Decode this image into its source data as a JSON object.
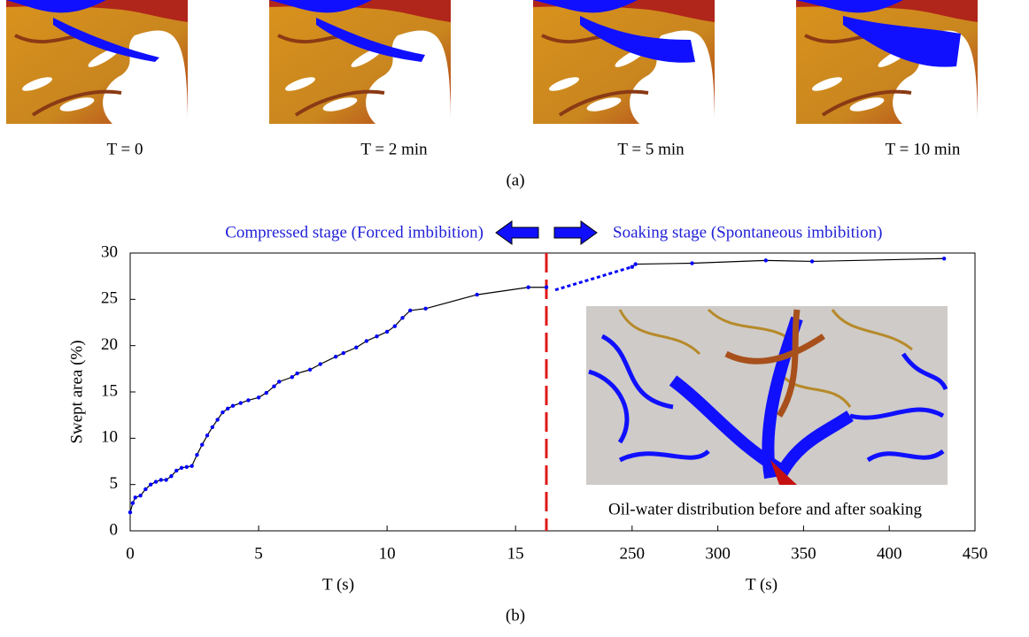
{
  "figure": {
    "panel_a_label": "(a)",
    "panel_b_label": "(b)",
    "captions": [
      "T = 0",
      "T = 2 min",
      "T = 5 min",
      "T = 10 min"
    ],
    "inset_caption": "Oil-water distribution before and after soaking"
  },
  "chart_data": [
    {
      "type": "line",
      "x_label": "T (s)",
      "y_label": "Swept area (%)",
      "annotation": "Compressed stage (Forced imbibition)",
      "xlim": [
        0,
        16.2
      ],
      "xticks": [
        0,
        5,
        10,
        15
      ],
      "ylim": [
        0,
        30
      ],
      "yticks": [
        0,
        5,
        10,
        15,
        20,
        25,
        30
      ],
      "series": [
        {
          "color": "#0000ff",
          "line_color": "#000000",
          "x": [
            0,
            0.1,
            0.2,
            0.4,
            0.6,
            0.8,
            1.0,
            1.2,
            1.4,
            1.6,
            1.8,
            2.0,
            2.2,
            2.4,
            2.6,
            2.8,
            3.0,
            3.2,
            3.4,
            3.6,
            3.8,
            4.0,
            4.3,
            4.6,
            5.0,
            5.3,
            5.6,
            5.8,
            6.3,
            6.5,
            7.0,
            7.4,
            8.0,
            8.3,
            8.8,
            9.2,
            9.6,
            10.0,
            10.3,
            10.6,
            10.9,
            11.5,
            13.5,
            15.5,
            16.2
          ],
          "values": [
            2.0,
            3.0,
            3.6,
            3.8,
            4.5,
            5.0,
            5.3,
            5.5,
            5.5,
            5.9,
            6.5,
            6.8,
            6.9,
            7.0,
            8.2,
            9.3,
            10.3,
            11.2,
            12.0,
            12.8,
            13.2,
            13.5,
            13.8,
            14.1,
            14.4,
            14.9,
            15.6,
            16.1,
            16.6,
            17.0,
            17.4,
            18.0,
            18.8,
            19.2,
            19.8,
            20.5,
            21.0,
            21.5,
            22.1,
            23.0,
            23.8,
            24.0,
            25.5,
            26.3,
            26.3
          ]
        }
      ]
    },
    {
      "type": "line",
      "x_label": "T (s)",
      "annotation": "Soaking stage (Spontaneous imbibition)",
      "xlim": [
        200,
        450
      ],
      "xticks": [
        250,
        300,
        350,
        400,
        450
      ],
      "ylim": [
        0,
        30
      ],
      "series": [
        {
          "color": "#0000ff",
          "line_color": "#000000",
          "x": [
            250,
            252,
            285,
            328,
            355,
            432
          ],
          "values": [
            28.5,
            28.8,
            28.9,
            29.2,
            29.1,
            29.4
          ]
        }
      ]
    }
  ]
}
